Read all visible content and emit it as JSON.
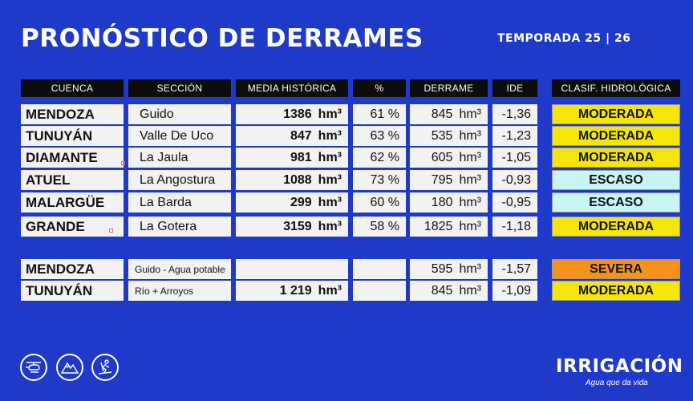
{
  "title": "PRONÓSTICO DE DERRAMES",
  "season": "TEMPORADA 25 | 26",
  "headers": {
    "cuenca": "CUENCA",
    "seccion": "SECCIÓN",
    "media": "MEDIA HISTÓRICA",
    "pct": "%",
    "derrame": "DERRAME",
    "ide": "IDE",
    "clasif": "CLASIF. HIDROLÓGICA"
  },
  "unit": "hm³",
  "colors": {
    "moderada": "#f5e50a",
    "escaso": "#c9f5f7",
    "severa": "#f5921e",
    "background": "#1f39c9"
  },
  "rows": [
    {
      "cuenca": "MENDOZA",
      "seccion": "Guido",
      "media": "1386",
      "pct": "61 %",
      "derrame": "845",
      "ide": "-1,36",
      "clasif": "MODERADA",
      "color": "#f5e50a"
    },
    {
      "cuenca": "TUNUYÁN",
      "seccion": "Valle De Uco",
      "media": "847",
      "pct": "63 %",
      "derrame": "535",
      "ide": "-1,23",
      "clasif": "MODERADA",
      "color": "#f5e50a"
    },
    {
      "cuenca": "DIAMANTE",
      "seccion": "La Jaula",
      "media": "981",
      "pct": "62 %",
      "derrame": "605",
      "ide": "-1,05",
      "clasif": "MODERADA",
      "color": "#f5e50a"
    },
    {
      "cuenca": "ATUEL",
      "seccion": "La Angostura",
      "media": "1088",
      "pct": "73 %",
      "derrame": "795",
      "ide": "-0,93",
      "clasif": "ESCASO",
      "color": "#c9f5f7"
    },
    {
      "cuenca": "MALARGÜE",
      "seccion": "La Barda",
      "media": "299",
      "pct": "60 %",
      "derrame": "180",
      "ide": "-0,95",
      "clasif": "ESCASO",
      "color": "#c9f5f7"
    },
    {
      "cuenca": "GRANDE",
      "seccion": "La Gotera",
      "media": "3159",
      "pct": "58 %",
      "derrame": "1825",
      "ide": "-1,18",
      "clasif": "MODERADA",
      "color": "#f5e50a"
    }
  ],
  "extra_rows": [
    {
      "cuenca": "MENDOZA",
      "seccion": "Guido - Agua potable",
      "media": "",
      "pct": "",
      "derrame": "595",
      "ide": "-1,57",
      "clasif": "SEVERA",
      "color": "#f5921e"
    },
    {
      "cuenca": "TUNUYÁN",
      "seccion": "Río + Arroyos",
      "media": "1 219",
      "pct": "",
      "derrame": "845",
      "ide": "-1,09",
      "clasif": "MODERADA",
      "color": "#f5e50a"
    }
  ],
  "footer": {
    "icons": [
      "helicopter-icon",
      "mountains-icon",
      "skier-icon"
    ],
    "logo": "IRRIGACIÓN",
    "tagline": "Agua que da vida"
  }
}
